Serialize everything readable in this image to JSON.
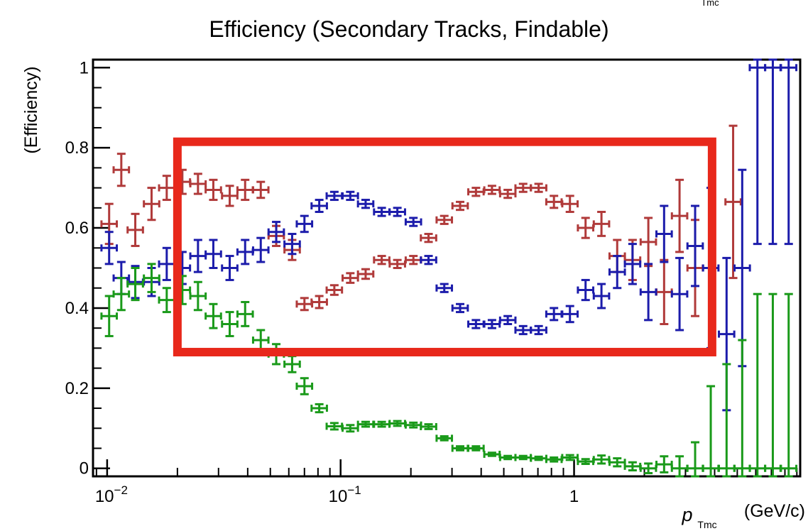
{
  "chart_data": {
    "type": "scatter",
    "title": "Efficiency (Secondary Tracks, Findable)",
    "corner_label": "Tmc",
    "ylabel": "(Efficiency)",
    "xlabel_main": "p",
    "xlabel_sub": "Tmc",
    "xlabel_units": "(GeV/c)",
    "x_scale": "log",
    "xlim": [
      0.0087,
      9.3
    ],
    "ylim": [
      -0.02,
      1.02
    ],
    "x_tick_labels": [
      {
        "value": 0.01,
        "base": "10",
        "exp": "−2"
      },
      {
        "value": 0.1,
        "base": "10",
        "exp": "−1"
      },
      {
        "value": 1,
        "base": "1",
        "exp": ""
      }
    ],
    "y_ticks": [
      0,
      0.2,
      0.4,
      0.6,
      0.8,
      1
    ],
    "y_tick_labels": [
      "0",
      "0.2",
      "0.4",
      "0.6",
      "0.8",
      "1"
    ],
    "highlight_box": {
      "x": [
        0.02,
        3.9
      ],
      "y": [
        0.29,
        0.815
      ],
      "color": "#e8281b"
    },
    "series": [
      {
        "color": "#b03a3a",
        "points": [
          [
            0.0102,
            0.61,
            0.05
          ],
          [
            0.0115,
            0.745,
            0.04
          ],
          [
            0.0132,
            0.595,
            0.04
          ],
          [
            0.0155,
            0.66,
            0.04
          ],
          [
            0.018,
            0.7,
            0.03
          ],
          [
            0.021,
            0.715,
            0.03
          ],
          [
            0.0245,
            0.71,
            0.025
          ],
          [
            0.0285,
            0.695,
            0.025
          ],
          [
            0.0335,
            0.68,
            0.025
          ],
          [
            0.039,
            0.695,
            0.025
          ],
          [
            0.0455,
            0.695,
            0.02
          ],
          [
            0.053,
            0.58,
            0.025
          ],
          [
            0.062,
            0.545,
            0.025
          ],
          [
            0.07,
            0.41,
            0.015
          ],
          [
            0.081,
            0.415,
            0.015
          ],
          [
            0.094,
            0.445,
            0.012
          ],
          [
            0.11,
            0.475,
            0.012
          ],
          [
            0.128,
            0.485,
            0.012
          ],
          [
            0.15,
            0.52,
            0.01
          ],
          [
            0.175,
            0.51,
            0.01
          ],
          [
            0.205,
            0.52,
            0.01
          ],
          [
            0.238,
            0.575,
            0.01
          ],
          [
            0.278,
            0.62,
            0.01
          ],
          [
            0.325,
            0.655,
            0.01
          ],
          [
            0.38,
            0.69,
            0.01
          ],
          [
            0.445,
            0.695,
            0.01
          ],
          [
            0.52,
            0.685,
            0.01
          ],
          [
            0.605,
            0.7,
            0.01
          ],
          [
            0.705,
            0.7,
            0.01
          ],
          [
            0.82,
            0.665,
            0.015
          ],
          [
            0.96,
            0.66,
            0.02
          ],
          [
            1.12,
            0.6,
            0.025
          ],
          [
            1.31,
            0.61,
            0.03
          ],
          [
            1.53,
            0.53,
            0.04
          ],
          [
            1.78,
            0.52,
            0.05
          ],
          [
            2.08,
            0.565,
            0.06
          ],
          [
            2.43,
            0.44,
            0.08
          ],
          [
            2.83,
            0.63,
            0.09
          ],
          [
            3.3,
            0.5,
            0.12
          ],
          [
            4.8,
            0.665,
            0.19
          ]
        ]
      },
      {
        "color": "#1c1cab",
        "points": [
          [
            0.0102,
            0.55,
            0.04
          ],
          [
            0.0115,
            0.475,
            0.04
          ],
          [
            0.0132,
            0.465,
            0.04
          ],
          [
            0.0155,
            0.465,
            0.035
          ],
          [
            0.018,
            0.51,
            0.04
          ],
          [
            0.021,
            0.5,
            0.04
          ],
          [
            0.0245,
            0.53,
            0.04
          ],
          [
            0.0285,
            0.535,
            0.035
          ],
          [
            0.0335,
            0.5,
            0.03
          ],
          [
            0.039,
            0.54,
            0.03
          ],
          [
            0.0455,
            0.545,
            0.03
          ],
          [
            0.053,
            0.59,
            0.025
          ],
          [
            0.062,
            0.56,
            0.025
          ],
          [
            0.07,
            0.61,
            0.02
          ],
          [
            0.081,
            0.655,
            0.015
          ],
          [
            0.094,
            0.68,
            0.01
          ],
          [
            0.11,
            0.68,
            0.01
          ],
          [
            0.128,
            0.66,
            0.01
          ],
          [
            0.15,
            0.64,
            0.01
          ],
          [
            0.175,
            0.64,
            0.01
          ],
          [
            0.205,
            0.615,
            0.01
          ],
          [
            0.238,
            0.52,
            0.01
          ],
          [
            0.278,
            0.45,
            0.01
          ],
          [
            0.325,
            0.4,
            0.01
          ],
          [
            0.38,
            0.36,
            0.01
          ],
          [
            0.445,
            0.36,
            0.01
          ],
          [
            0.52,
            0.37,
            0.01
          ],
          [
            0.605,
            0.345,
            0.01
          ],
          [
            0.705,
            0.345,
            0.01
          ],
          [
            0.82,
            0.385,
            0.015
          ],
          [
            0.96,
            0.385,
            0.02
          ],
          [
            1.12,
            0.445,
            0.025
          ],
          [
            1.31,
            0.43,
            0.03
          ],
          [
            1.53,
            0.49,
            0.04
          ],
          [
            1.78,
            0.51,
            0.05
          ],
          [
            2.08,
            0.44,
            0.07
          ],
          [
            2.43,
            0.585,
            0.07
          ],
          [
            2.83,
            0.435,
            0.09
          ],
          [
            3.3,
            0.555,
            0.1
          ],
          [
            3.85,
            0.5,
            0.2
          ],
          [
            4.5,
            0.335,
            0.19
          ],
          [
            5.25,
            0.5,
            0.245
          ],
          [
            6.1,
            1.0,
            0.44
          ],
          [
            7.1,
            1.0,
            0.44
          ],
          [
            8.3,
            1.0,
            0.44
          ]
        ]
      },
      {
        "color": "#1a9a1a",
        "points": [
          [
            0.0102,
            0.38,
            0.05
          ],
          [
            0.0115,
            0.435,
            0.04
          ],
          [
            0.0132,
            0.46,
            0.04
          ],
          [
            0.0155,
            0.475,
            0.035
          ],
          [
            0.018,
            0.42,
            0.03
          ],
          [
            0.021,
            0.445,
            0.035
          ],
          [
            0.0245,
            0.43,
            0.035
          ],
          [
            0.0285,
            0.38,
            0.03
          ],
          [
            0.0335,
            0.36,
            0.03
          ],
          [
            0.039,
            0.385,
            0.03
          ],
          [
            0.0455,
            0.32,
            0.025
          ],
          [
            0.053,
            0.285,
            0.025
          ],
          [
            0.062,
            0.26,
            0.02
          ],
          [
            0.07,
            0.205,
            0.02
          ],
          [
            0.081,
            0.15,
            0.01
          ],
          [
            0.094,
            0.105,
            0.008
          ],
          [
            0.11,
            0.1,
            0.008
          ],
          [
            0.128,
            0.11,
            0.006
          ],
          [
            0.15,
            0.11,
            0.006
          ],
          [
            0.175,
            0.112,
            0.006
          ],
          [
            0.205,
            0.108,
            0.006
          ],
          [
            0.238,
            0.104,
            0.006
          ],
          [
            0.278,
            0.075,
            0.005
          ],
          [
            0.325,
            0.05,
            0.005
          ],
          [
            0.38,
            0.05,
            0.005
          ],
          [
            0.445,
            0.035,
            0.004
          ],
          [
            0.52,
            0.027,
            0.004
          ],
          [
            0.605,
            0.027,
            0.004
          ],
          [
            0.705,
            0.025,
            0.004
          ],
          [
            0.82,
            0.022,
            0.005
          ],
          [
            0.96,
            0.027,
            0.006
          ],
          [
            1.12,
            0.017,
            0.006
          ],
          [
            1.31,
            0.022,
            0.01
          ],
          [
            1.53,
            0.015,
            0.01
          ],
          [
            1.78,
            0.005,
            0.01
          ],
          [
            2.08,
            0.0,
            0.012
          ],
          [
            2.43,
            0.01,
            0.02
          ],
          [
            2.83,
            0.0,
            0.03
          ],
          [
            3.3,
            0.0,
            0.065
          ],
          [
            3.85,
            0.0,
            0.205
          ],
          [
            4.5,
            0.0,
            0.26
          ],
          [
            5.25,
            0.0,
            0.32
          ],
          [
            6.1,
            0.0,
            0.435
          ],
          [
            7.1,
            0.0,
            0.435
          ],
          [
            8.3,
            0.0,
            0.435
          ]
        ]
      }
    ]
  }
}
